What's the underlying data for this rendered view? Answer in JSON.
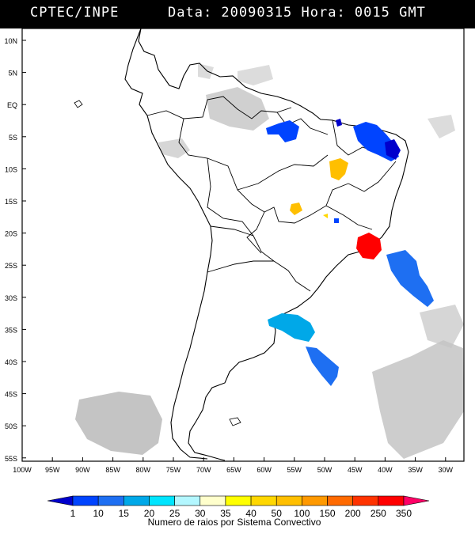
{
  "header": {
    "source": "CPTEC/INPE",
    "datetime": "Data: 20090315 Hora: 0015 GMT"
  },
  "map": {
    "lat_labels": [
      "10N",
      "5N",
      "EQ",
      "5S",
      "10S",
      "15S",
      "20S",
      "25S",
      "30S",
      "35S",
      "40S",
      "45S",
      "50S",
      "55S"
    ],
    "lon_labels": [
      "100W",
      "95W",
      "90W",
      "85W",
      "80W",
      "75W",
      "70W",
      "65W",
      "60W",
      "55W",
      "50W",
      "45W",
      "40W",
      "35W",
      "30W"
    ],
    "colors": {
      "land_border": "#000000",
      "cloud": "#bdbdbd",
      "background": "#ffffff"
    }
  },
  "legend": {
    "ticks": [
      "1",
      "10",
      "15",
      "20",
      "25",
      "30",
      "35",
      "40",
      "50",
      "100",
      "150",
      "200",
      "250",
      "350"
    ],
    "colors": [
      "#0000cc",
      "#0044ff",
      "#1e6ff2",
      "#00a8e8",
      "#00e5ff",
      "#b3f7ff",
      "#ffffcc",
      "#ffff00",
      "#ffd700",
      "#ffbf00",
      "#ff9900",
      "#ff6a00",
      "#ff3300",
      "#ff0000",
      "#ff0066"
    ],
    "caption": "Numero de raios por Sistema Convectivo"
  }
}
